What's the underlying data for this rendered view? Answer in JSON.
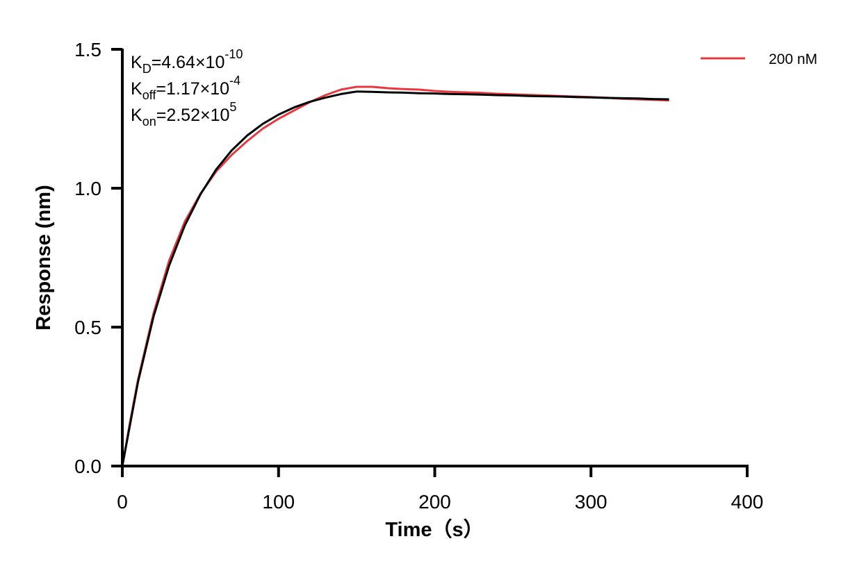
{
  "chart_data": {
    "type": "line",
    "title": "",
    "xlabel": "Time（s）",
    "ylabel": "Response (nm)",
    "xlim": [
      0,
      400
    ],
    "ylim": [
      0,
      1.5
    ],
    "xticks": [
      "0",
      "100",
      "200",
      "300",
      "400"
    ],
    "yticks": [
      "0.0",
      "0.5",
      "1.0",
      "1.5"
    ],
    "grid": false,
    "legend_position": "top-right",
    "annotations": [
      {
        "main": "K",
        "sub": "D",
        "eq": "=4.64×10",
        "sup": "-10"
      },
      {
        "main": "K",
        "sub": "off",
        "eq": "=1.17×10",
        "sup": "-4"
      },
      {
        "main": "K",
        "sub": "on",
        "eq": "=2.52×10",
        "sup": "5"
      }
    ],
    "series": [
      {
        "name": "200 nM",
        "color": "#e8383d",
        "x": [
          0,
          5,
          10,
          20,
          30,
          40,
          50,
          60,
          70,
          80,
          90,
          100,
          110,
          120,
          130,
          140,
          150,
          160,
          170,
          180,
          190,
          200,
          210,
          220,
          230,
          240,
          250,
          260,
          270,
          280,
          290,
          300,
          310,
          320,
          330,
          340,
          350
        ],
        "y": [
          0,
          0.16,
          0.31,
          0.55,
          0.74,
          0.88,
          0.98,
          1.06,
          1.12,
          1.17,
          1.215,
          1.25,
          1.28,
          1.31,
          1.335,
          1.355,
          1.365,
          1.365,
          1.36,
          1.357,
          1.355,
          1.35,
          1.347,
          1.345,
          1.343,
          1.34,
          1.338,
          1.336,
          1.334,
          1.332,
          1.33,
          1.328,
          1.326,
          1.322,
          1.32,
          1.318,
          1.316
        ]
      },
      {
        "role": "fit",
        "color": "#000000",
        "x": [
          0,
          10,
          20,
          30,
          40,
          50,
          60,
          70,
          80,
          90,
          100,
          110,
          120,
          130,
          140,
          150,
          160,
          170,
          180,
          190,
          200,
          210,
          220,
          230,
          240,
          250,
          260,
          270,
          280,
          290,
          300,
          310,
          320,
          330,
          340,
          350
        ],
        "y": [
          0,
          0.302,
          0.538,
          0.722,
          0.866,
          0.978,
          1.067,
          1.136,
          1.19,
          1.232,
          1.265,
          1.291,
          1.311,
          1.326,
          1.339,
          1.348,
          1.347,
          1.345,
          1.344,
          1.342,
          1.341,
          1.339,
          1.338,
          1.337,
          1.335,
          1.334,
          1.332,
          1.331,
          1.33,
          1.328,
          1.327,
          1.325,
          1.324,
          1.323,
          1.321,
          1.32
        ]
      }
    ]
  }
}
